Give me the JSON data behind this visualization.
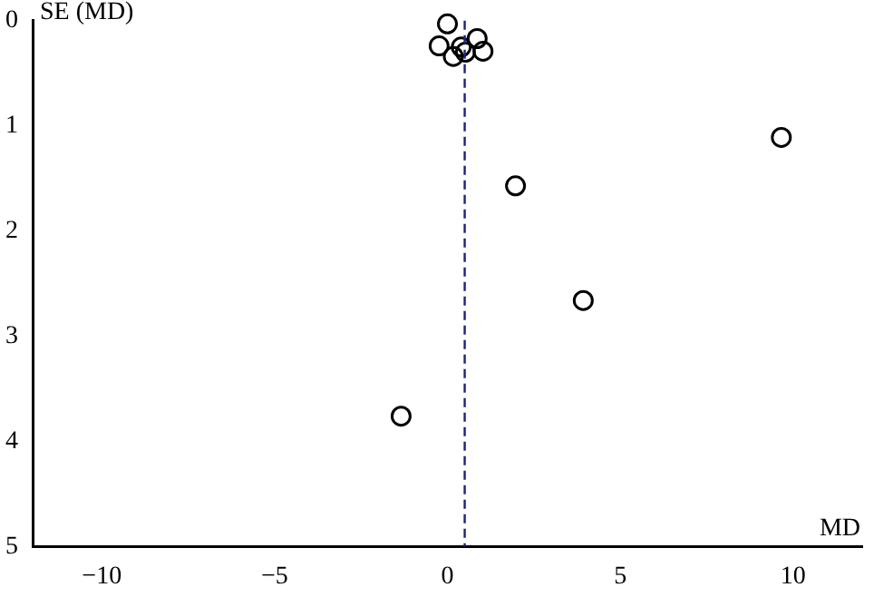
{
  "chart_data": {
    "type": "scatter",
    "xlabel": "MD",
    "ylabel": "SE (MD)",
    "x": [
      0.0,
      -0.24,
      0.4,
      0.86,
      0.17,
      0.52,
      1.03,
      9.66,
      1.97,
      3.93,
      -1.34
    ],
    "values": [
      0.03,
      0.24,
      0.25,
      0.17,
      0.34,
      0.3,
      0.29,
      1.11,
      1.57,
      2.66,
      3.76
    ],
    "color": "#000000",
    "marker": "circle",
    "xlim": [
      -12,
      12
    ],
    "xticks": [
      {
        "value": -10,
        "label": "−10"
      },
      {
        "value": -5,
        "label": "−5"
      },
      0,
      5,
      10
    ],
    "ylim": [
      5,
      0
    ],
    "yticks": [
      0,
      1,
      2,
      3,
      4,
      5
    ],
    "ref_lines": [
      {
        "axis": "x",
        "value": 0.5,
        "color": "#1a237e",
        "line_style": "dashed"
      }
    ],
    "grid": false,
    "legend": false
  }
}
